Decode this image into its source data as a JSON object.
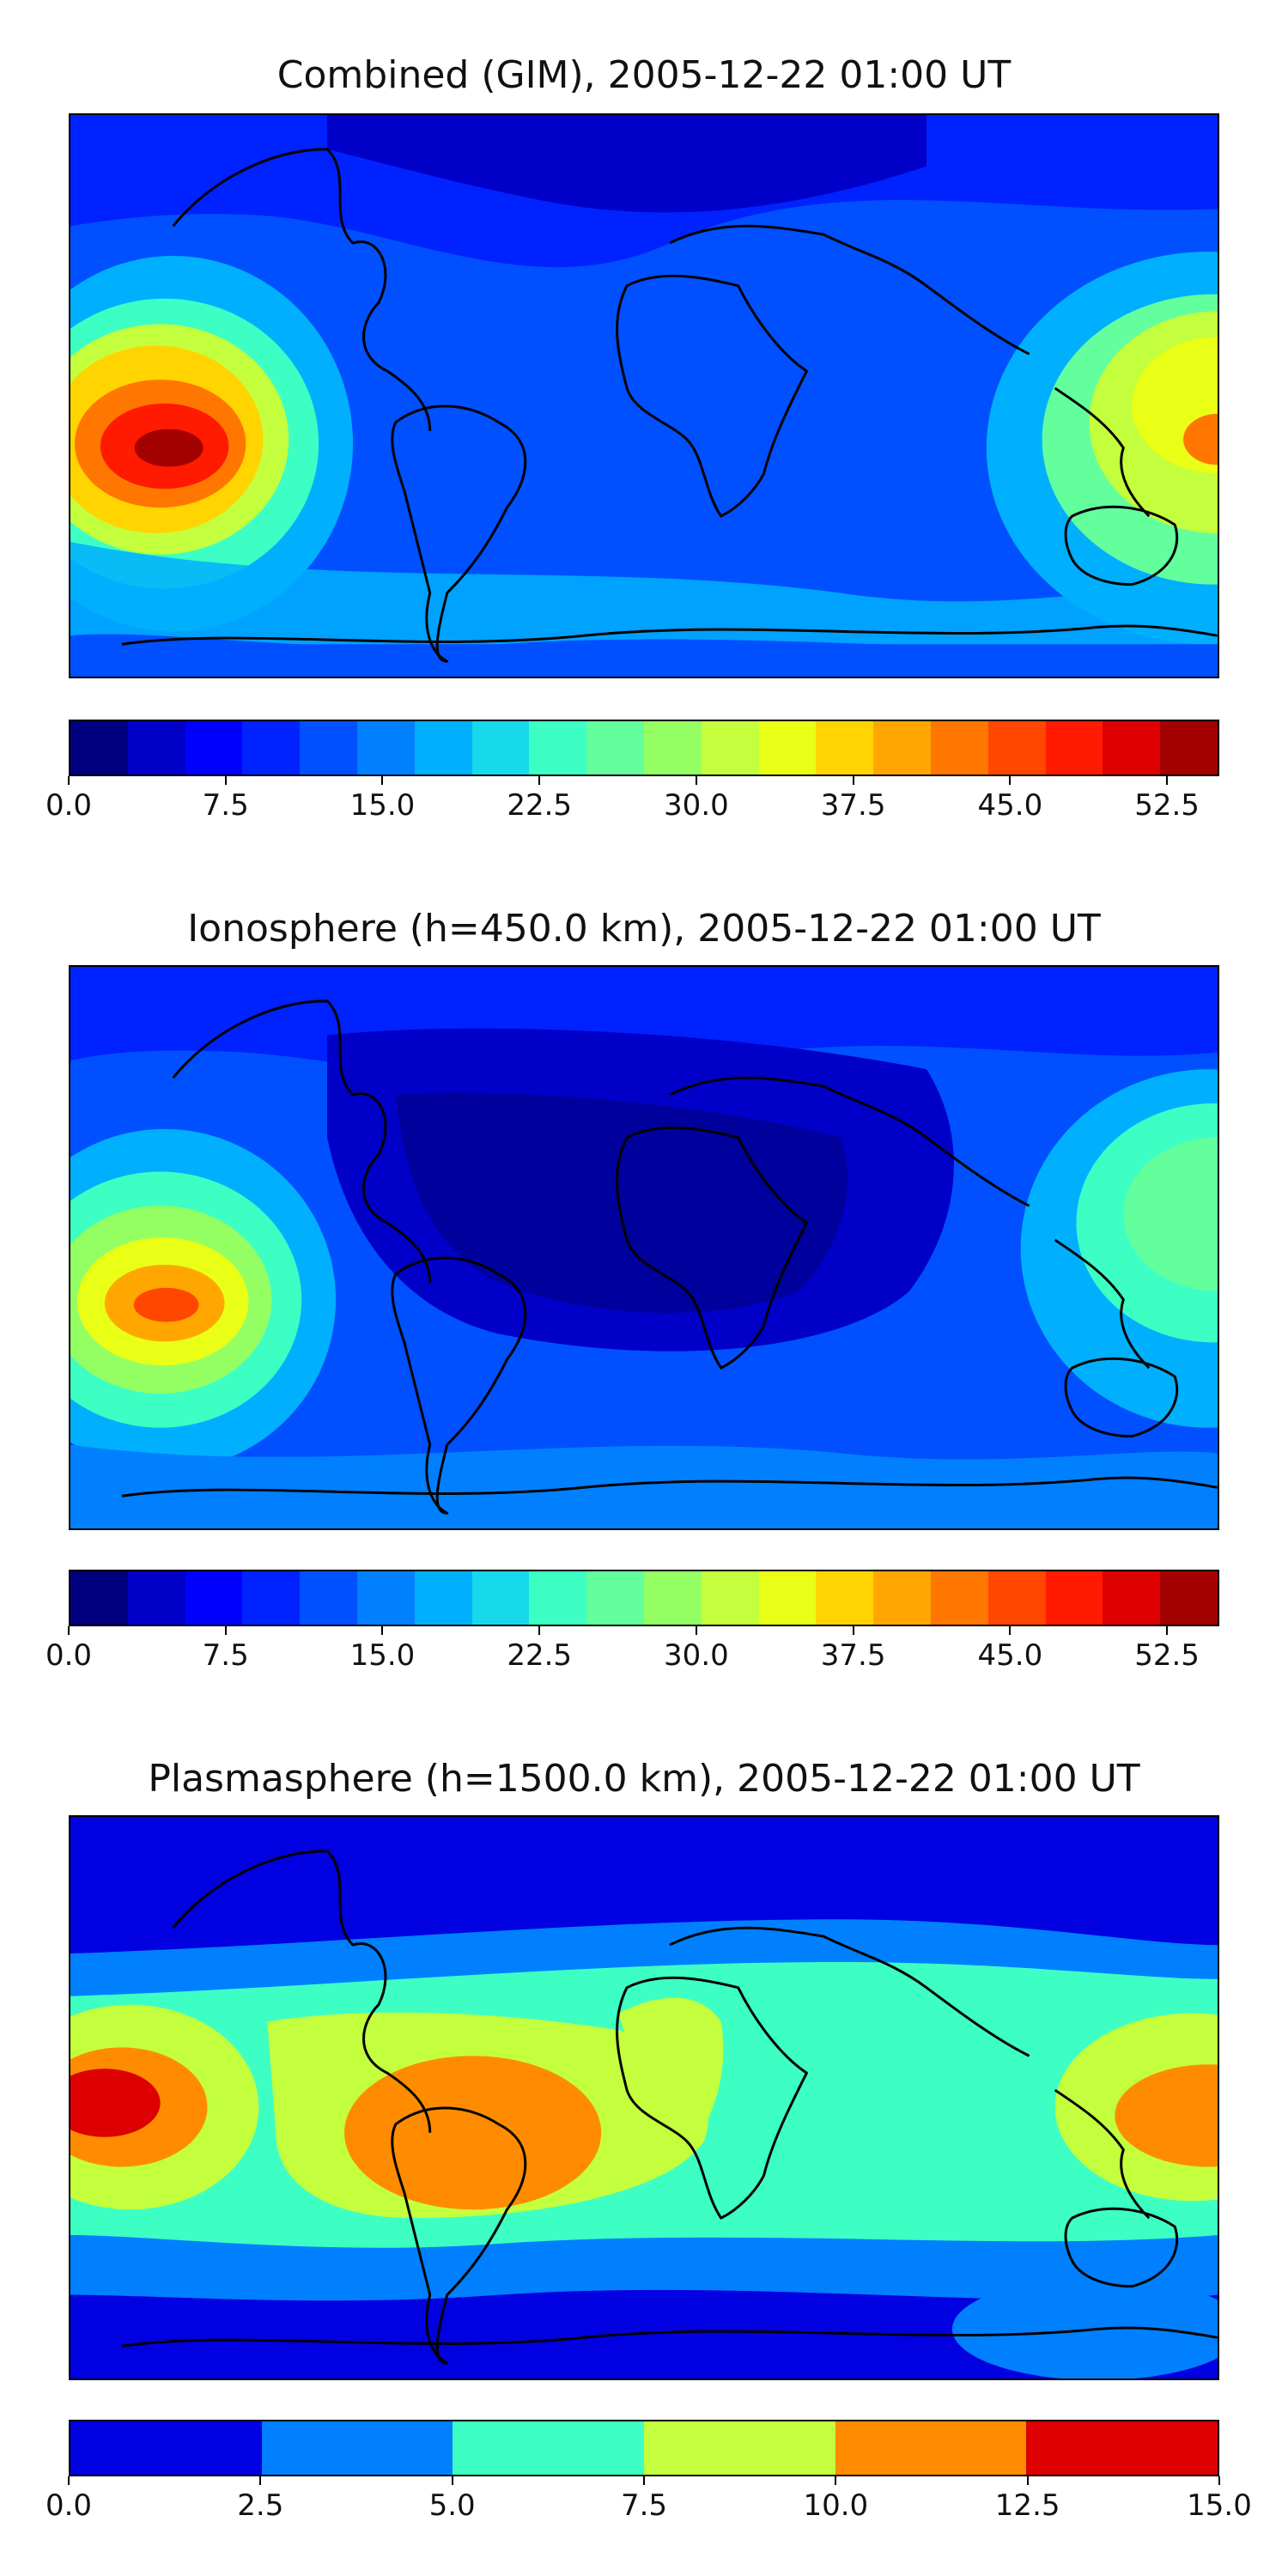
{
  "panels": [
    {
      "title": "Combined (GIM), 2005-12-22 01:00 UT",
      "colorbar": {
        "colors": [
          "#00007f",
          "#0000c8",
          "#0000ff",
          "#0022ff",
          "#0050ff",
          "#0080ff",
          "#00b0ff",
          "#16d9ec",
          "#3dffc3",
          "#63ff9d",
          "#93ff63",
          "#c3ff3d",
          "#eaff16",
          "#ffd400",
          "#ffa700",
          "#ff7700",
          "#ff4700",
          "#ff1a00",
          "#dc0000",
          "#a30000"
        ],
        "ticks": [
          "0.0",
          "7.5",
          "15.0",
          "22.5",
          "30.0",
          "37.5",
          "45.0",
          "52.5"
        ],
        "range": [
          0,
          55
        ]
      }
    },
    {
      "title": "Ionosphere  (h=450.0 km), 2005-12-22 01:00 UT",
      "colorbar": {
        "colors": [
          "#00007f",
          "#0000c8",
          "#0000ff",
          "#0022ff",
          "#0050ff",
          "#0080ff",
          "#00b0ff",
          "#16d9ec",
          "#3dffc3",
          "#63ff9d",
          "#93ff63",
          "#c3ff3d",
          "#eaff16",
          "#ffd400",
          "#ffa700",
          "#ff7700",
          "#ff4700",
          "#ff1a00",
          "#dc0000",
          "#a30000"
        ],
        "ticks": [
          "0.0",
          "7.5",
          "15.0",
          "22.5",
          "30.0",
          "37.5",
          "45.0",
          "52.5"
        ],
        "range": [
          0,
          55
        ]
      }
    },
    {
      "title": "Plasmasphere (h=1500.0 km), 2005-12-22 01:00 UT",
      "colorbar": {
        "colors": [
          "#0000e0",
          "#0080ff",
          "#3dffc3",
          "#c3ff3d",
          "#ff8c00",
          "#dc0000"
        ],
        "ticks": [
          "0.0",
          "2.5",
          "5.0",
          "7.5",
          "10.0",
          "12.5",
          "15.0"
        ],
        "range": [
          0,
          15
        ]
      }
    }
  ]
}
